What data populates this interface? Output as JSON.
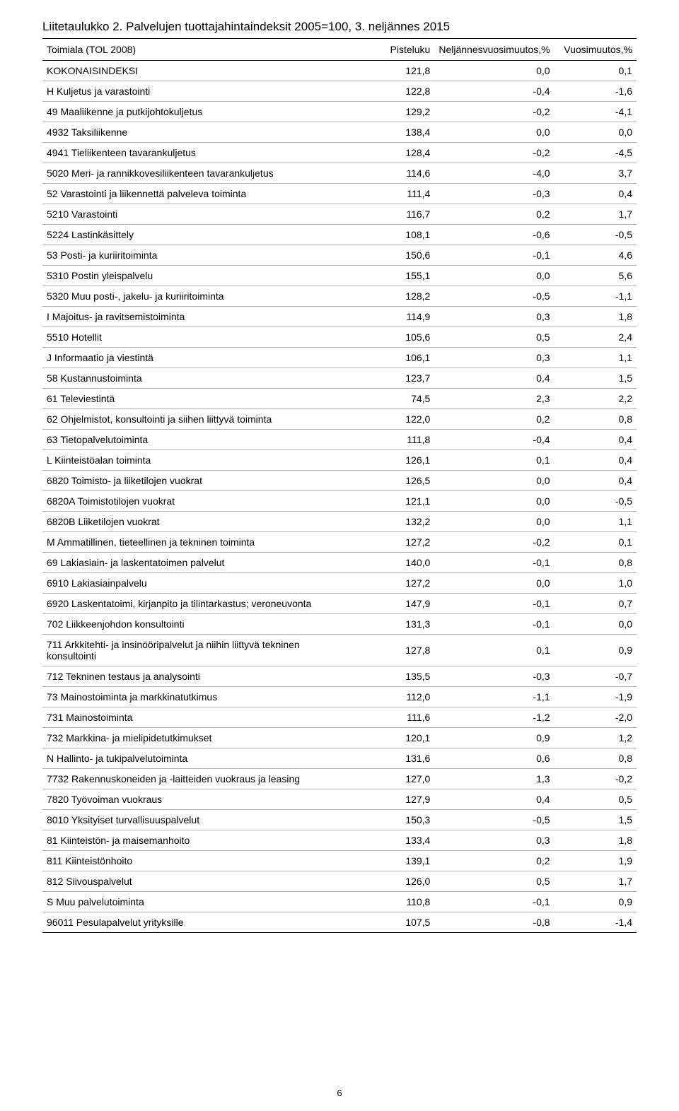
{
  "title": "Liitetaulukko 2. Palvelujen tuottajahintaindeksit 2005=100, 3. neljännes 2015",
  "table": {
    "columns": [
      "Toimiala (TOL 2008)",
      "Pisteluku",
      "Neljännesvuosimuutos,%",
      "Vuosimuutos,%"
    ],
    "rows": [
      [
        "KOKONAISINDEKSI",
        "121,8",
        "0,0",
        "0,1"
      ],
      [
        "H Kuljetus ja varastointi",
        "122,8",
        "-0,4",
        "-1,6"
      ],
      [
        "49 Maaliikenne ja putkijohtokuljetus",
        "129,2",
        "-0,2",
        "-4,1"
      ],
      [
        "4932 Taksiliikenne",
        "138,4",
        "0,0",
        "0,0"
      ],
      [
        "4941 Tieliikenteen tavarankuljetus",
        "128,4",
        "-0,2",
        "-4,5"
      ],
      [
        "5020 Meri- ja rannikkovesiliikenteen tavarankuljetus",
        "114,6",
        "-4,0",
        "3,7"
      ],
      [
        "52 Varastointi ja liikennettä palveleva toiminta",
        "111,4",
        "-0,3",
        "0,4"
      ],
      [
        "5210 Varastointi",
        "116,7",
        "0,2",
        "1,7"
      ],
      [
        "5224 Lastinkäsittely",
        "108,1",
        "-0,6",
        "-0,5"
      ],
      [
        "53 Posti- ja kuriiritoiminta",
        "150,6",
        "-0,1",
        "4,6"
      ],
      [
        "5310 Postin yleispalvelu",
        "155,1",
        "0,0",
        "5,6"
      ],
      [
        "5320 Muu posti-, jakelu- ja kuriiritoiminta",
        "128,2",
        "-0,5",
        "-1,1"
      ],
      [
        "I Majoitus- ja ravitsemistoiminta",
        "114,9",
        "0,3",
        "1,8"
      ],
      [
        "5510 Hotellit",
        "105,6",
        "0,5",
        "2,4"
      ],
      [
        "J Informaatio ja viestintä",
        "106,1",
        "0,3",
        "1,1"
      ],
      [
        "58 Kustannustoiminta",
        "123,7",
        "0,4",
        "1,5"
      ],
      [
        "61 Televiestintä",
        "74,5",
        "2,3",
        "2,2"
      ],
      [
        "62 Ohjelmistot, konsultointi ja siihen liittyvä toiminta",
        "122,0",
        "0,2",
        "0,8"
      ],
      [
        "63 Tietopalvelutoiminta",
        "111,8",
        "-0,4",
        "0,4"
      ],
      [
        "L Kiinteistöalan toiminta",
        "126,1",
        "0,1",
        "0,4"
      ],
      [
        "6820 Toimisto- ja liiketilojen vuokrat",
        "126,5",
        "0,0",
        "0,4"
      ],
      [
        "6820A Toimistotilojen vuokrat",
        "121,1",
        "0,0",
        "-0,5"
      ],
      [
        "6820B Liiketilojen vuokrat",
        "132,2",
        "0,0",
        "1,1"
      ],
      [
        "M Ammatillinen, tieteellinen ja tekninen toiminta",
        "127,2",
        "-0,2",
        "0,1"
      ],
      [
        "69 Lakiasiain- ja laskentatoimen palvelut",
        "140,0",
        "-0,1",
        "0,8"
      ],
      [
        "6910 Lakiasiainpalvelu",
        "127,2",
        "0,0",
        "1,0"
      ],
      [
        "6920 Laskentatoimi, kirjanpito ja tilintarkastus; veroneuvonta",
        "147,9",
        "-0,1",
        "0,7"
      ],
      [
        "702 Liikkeenjohdon konsultointi",
        "131,3",
        "-0,1",
        "0,0"
      ],
      [
        "711 Arkkitehti- ja insinööripalvelut ja niihin liittyvä tekninen konsultointi",
        "127,8",
        "0,1",
        "0,9"
      ],
      [
        "712 Tekninen testaus ja analysointi",
        "135,5",
        "-0,3",
        "-0,7"
      ],
      [
        "73 Mainostoiminta ja markkinatutkimus",
        "112,0",
        "-1,1",
        "-1,9"
      ],
      [
        "731 Mainostoiminta",
        "111,6",
        "-1,2",
        "-2,0"
      ],
      [
        "732 Markkina- ja mielipidetutkimukset",
        "120,1",
        "0,9",
        "1,2"
      ],
      [
        "N Hallinto- ja tukipalvelutoiminta",
        "131,6",
        "0,6",
        "0,8"
      ],
      [
        "7732 Rakennuskoneiden ja -laitteiden vuokraus ja leasing",
        "127,0",
        "1,3",
        "-0,2"
      ],
      [
        "7820 Työvoiman vuokraus",
        "127,9",
        "0,4",
        "0,5"
      ],
      [
        "8010 Yksityiset turvallisuuspalvelut",
        "150,3",
        "-0,5",
        "1,5"
      ],
      [
        "81 Kiinteistön- ja maisemanhoito",
        "133,4",
        "0,3",
        "1,8"
      ],
      [
        "811 Kiinteistönhoito",
        "139,1",
        "0,2",
        "1,9"
      ],
      [
        "812 Siivouspalvelut",
        "126,0",
        "0,5",
        "1,7"
      ],
      [
        "S Muu palvelutoiminta",
        "110,8",
        "-0,1",
        "0,9"
      ],
      [
        "96011 Pesulapalvelut yrityksille",
        "107,5",
        "-0,8",
        "-1,4"
      ]
    ]
  },
  "page_number": "6"
}
